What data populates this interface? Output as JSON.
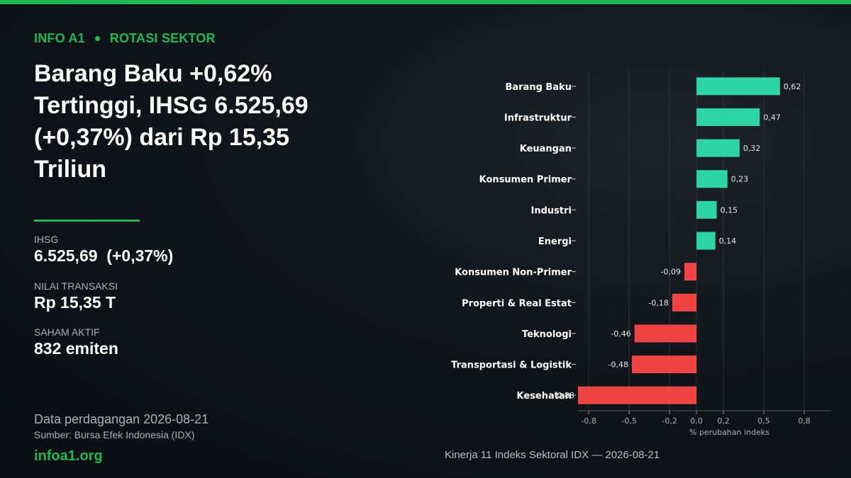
{
  "header": {
    "brand": "INFO A1",
    "section": "ROTASI SEKTOR",
    "headline": "Barang Baku +0,62% Tertinggi, IHSG 6.525,69 (+0,37%) dari Rp 15,35 Triliun"
  },
  "stats": {
    "ihsg_label": "IHSG",
    "ihsg_value": "6.525,69  (+0,37%)",
    "nilai_label": "NILAI TRANSAKSI",
    "nilai_value": "Rp 15,35 T",
    "saham_label": "SAHAM AKTIF",
    "saham_value": "832 emiten"
  },
  "footer": {
    "date": "Data perdagangan 2026-08-21",
    "source": "Sumber: Bursa Efek Indonesia (IDX)",
    "site": "infoa1.org",
    "caption": "Kinerja 11 Indeks Sektoral IDX — 2026-08-21"
  },
  "colors": {
    "accent": "#1db954",
    "positive": "#2dd4a7",
    "negative": "#ef4444"
  },
  "chart_data": {
    "type": "bar",
    "orientation": "horizontal",
    "categories": [
      "Barang Baku",
      "Infrastruktur",
      "Keuangan",
      "Konsumen Primer",
      "Industri",
      "Energi",
      "Konsumen Non-Primer",
      "Properti & Real Estat",
      "Teknologi",
      "Transportasi & Logistik",
      "Kesehatan"
    ],
    "values": [
      0.62,
      0.47,
      0.32,
      0.23,
      0.15,
      0.14,
      -0.09,
      -0.18,
      -0.46,
      -0.48,
      -0.88
    ],
    "value_labels": [
      "0,62",
      "0,47",
      "0,32",
      "0,23",
      "0,15",
      "0,14",
      "-0,09",
      "-0,18",
      "-0,46",
      "-0,48",
      "-0,88"
    ],
    "xlim": [
      -0.88,
      1.0
    ],
    "xticks": [
      -0.8,
      -0.5,
      -0.2,
      0.0,
      0.2,
      0.5,
      0.8
    ],
    "xtick_labels": [
      "-0,8",
      "-0,5",
      "-0,2",
      "0,0",
      "0,2",
      "0,5",
      "0,8"
    ],
    "xlabel": "% perubahan indeks",
    "ylabel": "",
    "grid": true
  }
}
